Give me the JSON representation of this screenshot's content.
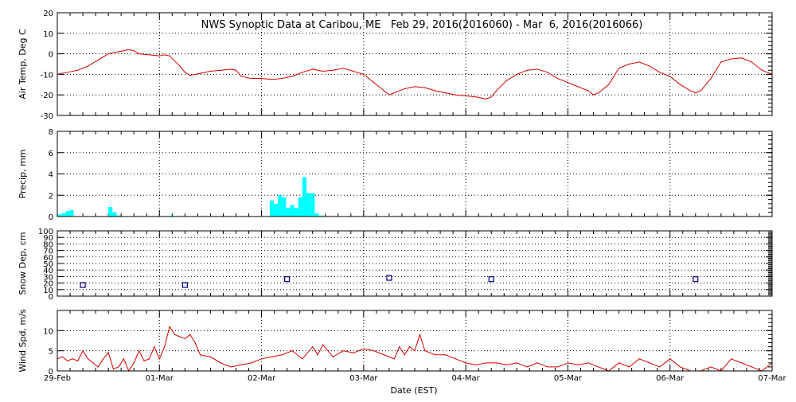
{
  "title": "NWS Synoptic Data at Caribou, ME   Feb 29, 2016(2016060) - Mar  6, 2016(2016066)",
  "xlabel": "Date (EST)",
  "x_ticks": [
    "29-Feb",
    "01-Mar",
    "02-Mar",
    "03-Mar",
    "04-Mar",
    "05-Mar",
    "06-Mar",
    "07-Mar"
  ],
  "colors": {
    "temp_line": "#d40000",
    "precip_bar": "#00ffff",
    "snow_marker": "#000080",
    "wind_line": "#d40000",
    "grid": "#000000"
  },
  "chart_data": [
    {
      "type": "line",
      "series_label": "Air Temp",
      "ylabel": "Air Temp, Deg C",
      "ylim": [
        -30,
        20
      ],
      "yticks": [
        -30,
        -20,
        -10,
        0,
        10,
        20
      ],
      "x_days": [
        0,
        0.1,
        0.2,
        0.3,
        0.4,
        0.5,
        0.6,
        0.7,
        0.75,
        0.8,
        0.9,
        1.0,
        1.05,
        1.1,
        1.2,
        1.25,
        1.3,
        1.4,
        1.5,
        1.6,
        1.7,
        1.75,
        1.8,
        1.9,
        2.0,
        2.1,
        2.2,
        2.3,
        2.4,
        2.5,
        2.6,
        2.7,
        2.8,
        2.9,
        3.0,
        3.1,
        3.2,
        3.25,
        3.3,
        3.4,
        3.5,
        3.6,
        3.7,
        3.8,
        3.9,
        4.0,
        4.1,
        4.2,
        4.25,
        4.3,
        4.4,
        4.5,
        4.6,
        4.7,
        4.8,
        4.9,
        5.0,
        5.1,
        5.2,
        5.25,
        5.3,
        5.4,
        5.5,
        5.6,
        5.7,
        5.8,
        5.9,
        6.0,
        6.1,
        6.2,
        6.25,
        6.3,
        6.4,
        6.5,
        6.6,
        6.7,
        6.8,
        6.9,
        7.0
      ],
      "values": [
        -10,
        -9,
        -8,
        -6,
        -3,
        0,
        1,
        2,
        1.5,
        0,
        -0.5,
        -1,
        -0.5,
        -1,
        -6,
        -9,
        -10.5,
        -9.5,
        -8.5,
        -8,
        -7.5,
        -8,
        -11,
        -12,
        -12,
        -12.5,
        -12,
        -11,
        -9,
        -7.5,
        -8.5,
        -8,
        -7,
        -8.5,
        -10,
        -14,
        -18,
        -20,
        -19,
        -17,
        -16,
        -16.5,
        -18,
        -19,
        -20,
        -20.5,
        -21,
        -22,
        -21,
        -18,
        -13,
        -10,
        -8,
        -7.5,
        -9,
        -12,
        -14,
        -16,
        -18,
        -20,
        -19,
        -15,
        -7,
        -5,
        -4,
        -6,
        -9,
        -11,
        -15,
        -18,
        -19,
        -18,
        -12,
        -4,
        -2.5,
        -2,
        -4,
        -8,
        -10
      ]
    },
    {
      "type": "bar",
      "series_label": "Precip",
      "ylabel": "Precip, mm",
      "ylim": [
        0,
        8
      ],
      "yticks": [
        0,
        2,
        4,
        6,
        8
      ],
      "bar_width_days": 0.04,
      "x_days": [
        0,
        0.04,
        0.08,
        0.12,
        0.5,
        0.54,
        0.58,
        1.1,
        2.08,
        2.12,
        2.16,
        2.2,
        2.24,
        2.28,
        2.32,
        2.36,
        2.4,
        2.44,
        2.48,
        2.52,
        2.56
      ],
      "values": [
        0.2,
        0.3,
        0.5,
        0.6,
        0.9,
        0.4,
        0.1,
        0.1,
        1.5,
        1.2,
        2.0,
        1.8,
        0.8,
        1.1,
        0.8,
        1.8,
        3.7,
        2.2,
        2.2,
        0.3,
        0.1
      ]
    },
    {
      "type": "scatter",
      "series_label": "Snow Depth",
      "ylabel": "Snow Dep, cm",
      "ylim": [
        0,
        100
      ],
      "yticks": [
        0,
        10,
        20,
        30,
        40,
        50,
        60,
        70,
        80,
        90,
        100
      ],
      "x_days": [
        0.25,
        1.25,
        2.25,
        3.25,
        4.25,
        6.25
      ],
      "values": [
        17,
        17,
        26,
        28,
        26,
        26
      ]
    },
    {
      "type": "line",
      "series_label": "Wind Speed",
      "ylabel": "Wind Spd, m/s",
      "ylim": [
        0,
        15
      ],
      "yticks": [
        0,
        5,
        10
      ],
      "x_days": [
        0,
        0.05,
        0.1,
        0.15,
        0.2,
        0.25,
        0.3,
        0.35,
        0.4,
        0.45,
        0.5,
        0.55,
        0.6,
        0.65,
        0.7,
        0.75,
        0.8,
        0.85,
        0.9,
        0.95,
        1.0,
        1.05,
        1.1,
        1.15,
        1.2,
        1.25,
        1.3,
        1.35,
        1.4,
        1.5,
        1.6,
        1.7,
        1.8,
        1.9,
        2.0,
        2.1,
        2.2,
        2.3,
        2.4,
        2.5,
        2.55,
        2.6,
        2.7,
        2.8,
        2.9,
        3.0,
        3.1,
        3.2,
        3.3,
        3.35,
        3.4,
        3.45,
        3.5,
        3.55,
        3.6,
        3.7,
        3.8,
        3.9,
        4.0,
        4.1,
        4.2,
        4.3,
        4.4,
        4.5,
        4.6,
        4.7,
        4.8,
        4.9,
        5.0,
        5.1,
        5.2,
        5.3,
        5.4,
        5.5,
        5.6,
        5.7,
        5.8,
        5.9,
        6.0,
        6.1,
        6.2,
        6.3,
        6.4,
        6.5,
        6.6,
        6.7,
        6.8,
        6.9,
        7.0
      ],
      "values": [
        3,
        3.5,
        2.5,
        3,
        2.5,
        5,
        3,
        2,
        1,
        3,
        4.5,
        0.5,
        1,
        3,
        0,
        2,
        5,
        2.5,
        3,
        6,
        3,
        6,
        11,
        9,
        8.5,
        8,
        9,
        7,
        4,
        3.5,
        2,
        1,
        1.5,
        2,
        3,
        3.5,
        4,
        5,
        3,
        6,
        4,
        6.5,
        3.5,
        5,
        4.5,
        5.5,
        5,
        4,
        3,
        6,
        4,
        6,
        5,
        9,
        5,
        4,
        4,
        3,
        2,
        1.5,
        2,
        2,
        1.5,
        2,
        1,
        2,
        1,
        1,
        2,
        1.5,
        2,
        1,
        0,
        2,
        1,
        3,
        2,
        1,
        3,
        1,
        0,
        0,
        1,
        0,
        3,
        2,
        1,
        0,
        2
      ]
    }
  ]
}
